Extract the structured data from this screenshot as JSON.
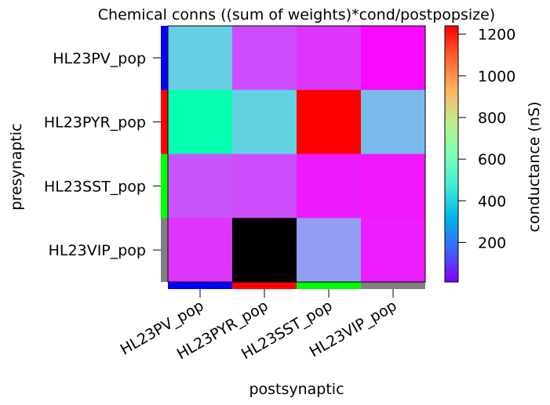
{
  "chart_data": {
    "type": "heatmap",
    "title": "Chemical conns ((sum of weights)*cond/postpopsize)",
    "xlabel": "postsynaptic",
    "ylabel": "presynaptic",
    "x_categories": [
      "HL23PV_pop",
      "HL23PYR_pop",
      "HL23SST_pop",
      "HL23VIP_pop"
    ],
    "y_categories": [
      "HL23PV_pop",
      "HL23PYR_pop",
      "HL23SST_pop",
      "HL23VIP_pop"
    ],
    "values": [
      [
        380,
        130,
        90,
        25
      ],
      [
        640,
        390,
        1240,
        330
      ],
      [
        140,
        130,
        50,
        45
      ],
      [
        90,
        null,
        270,
        55
      ]
    ],
    "null_color": "#000000",
    "population_colors": [
      "#0000ff",
      "#ff0000",
      "#00ff00",
      "#808080"
    ],
    "colormap": "rainbow",
    "colorbar": {
      "label": "conductance (nS)",
      "min": 10,
      "max": 1240,
      "ticks": [
        200,
        400,
        600,
        800,
        1000,
        1200
      ]
    },
    "grid": false,
    "legend": "none"
  }
}
